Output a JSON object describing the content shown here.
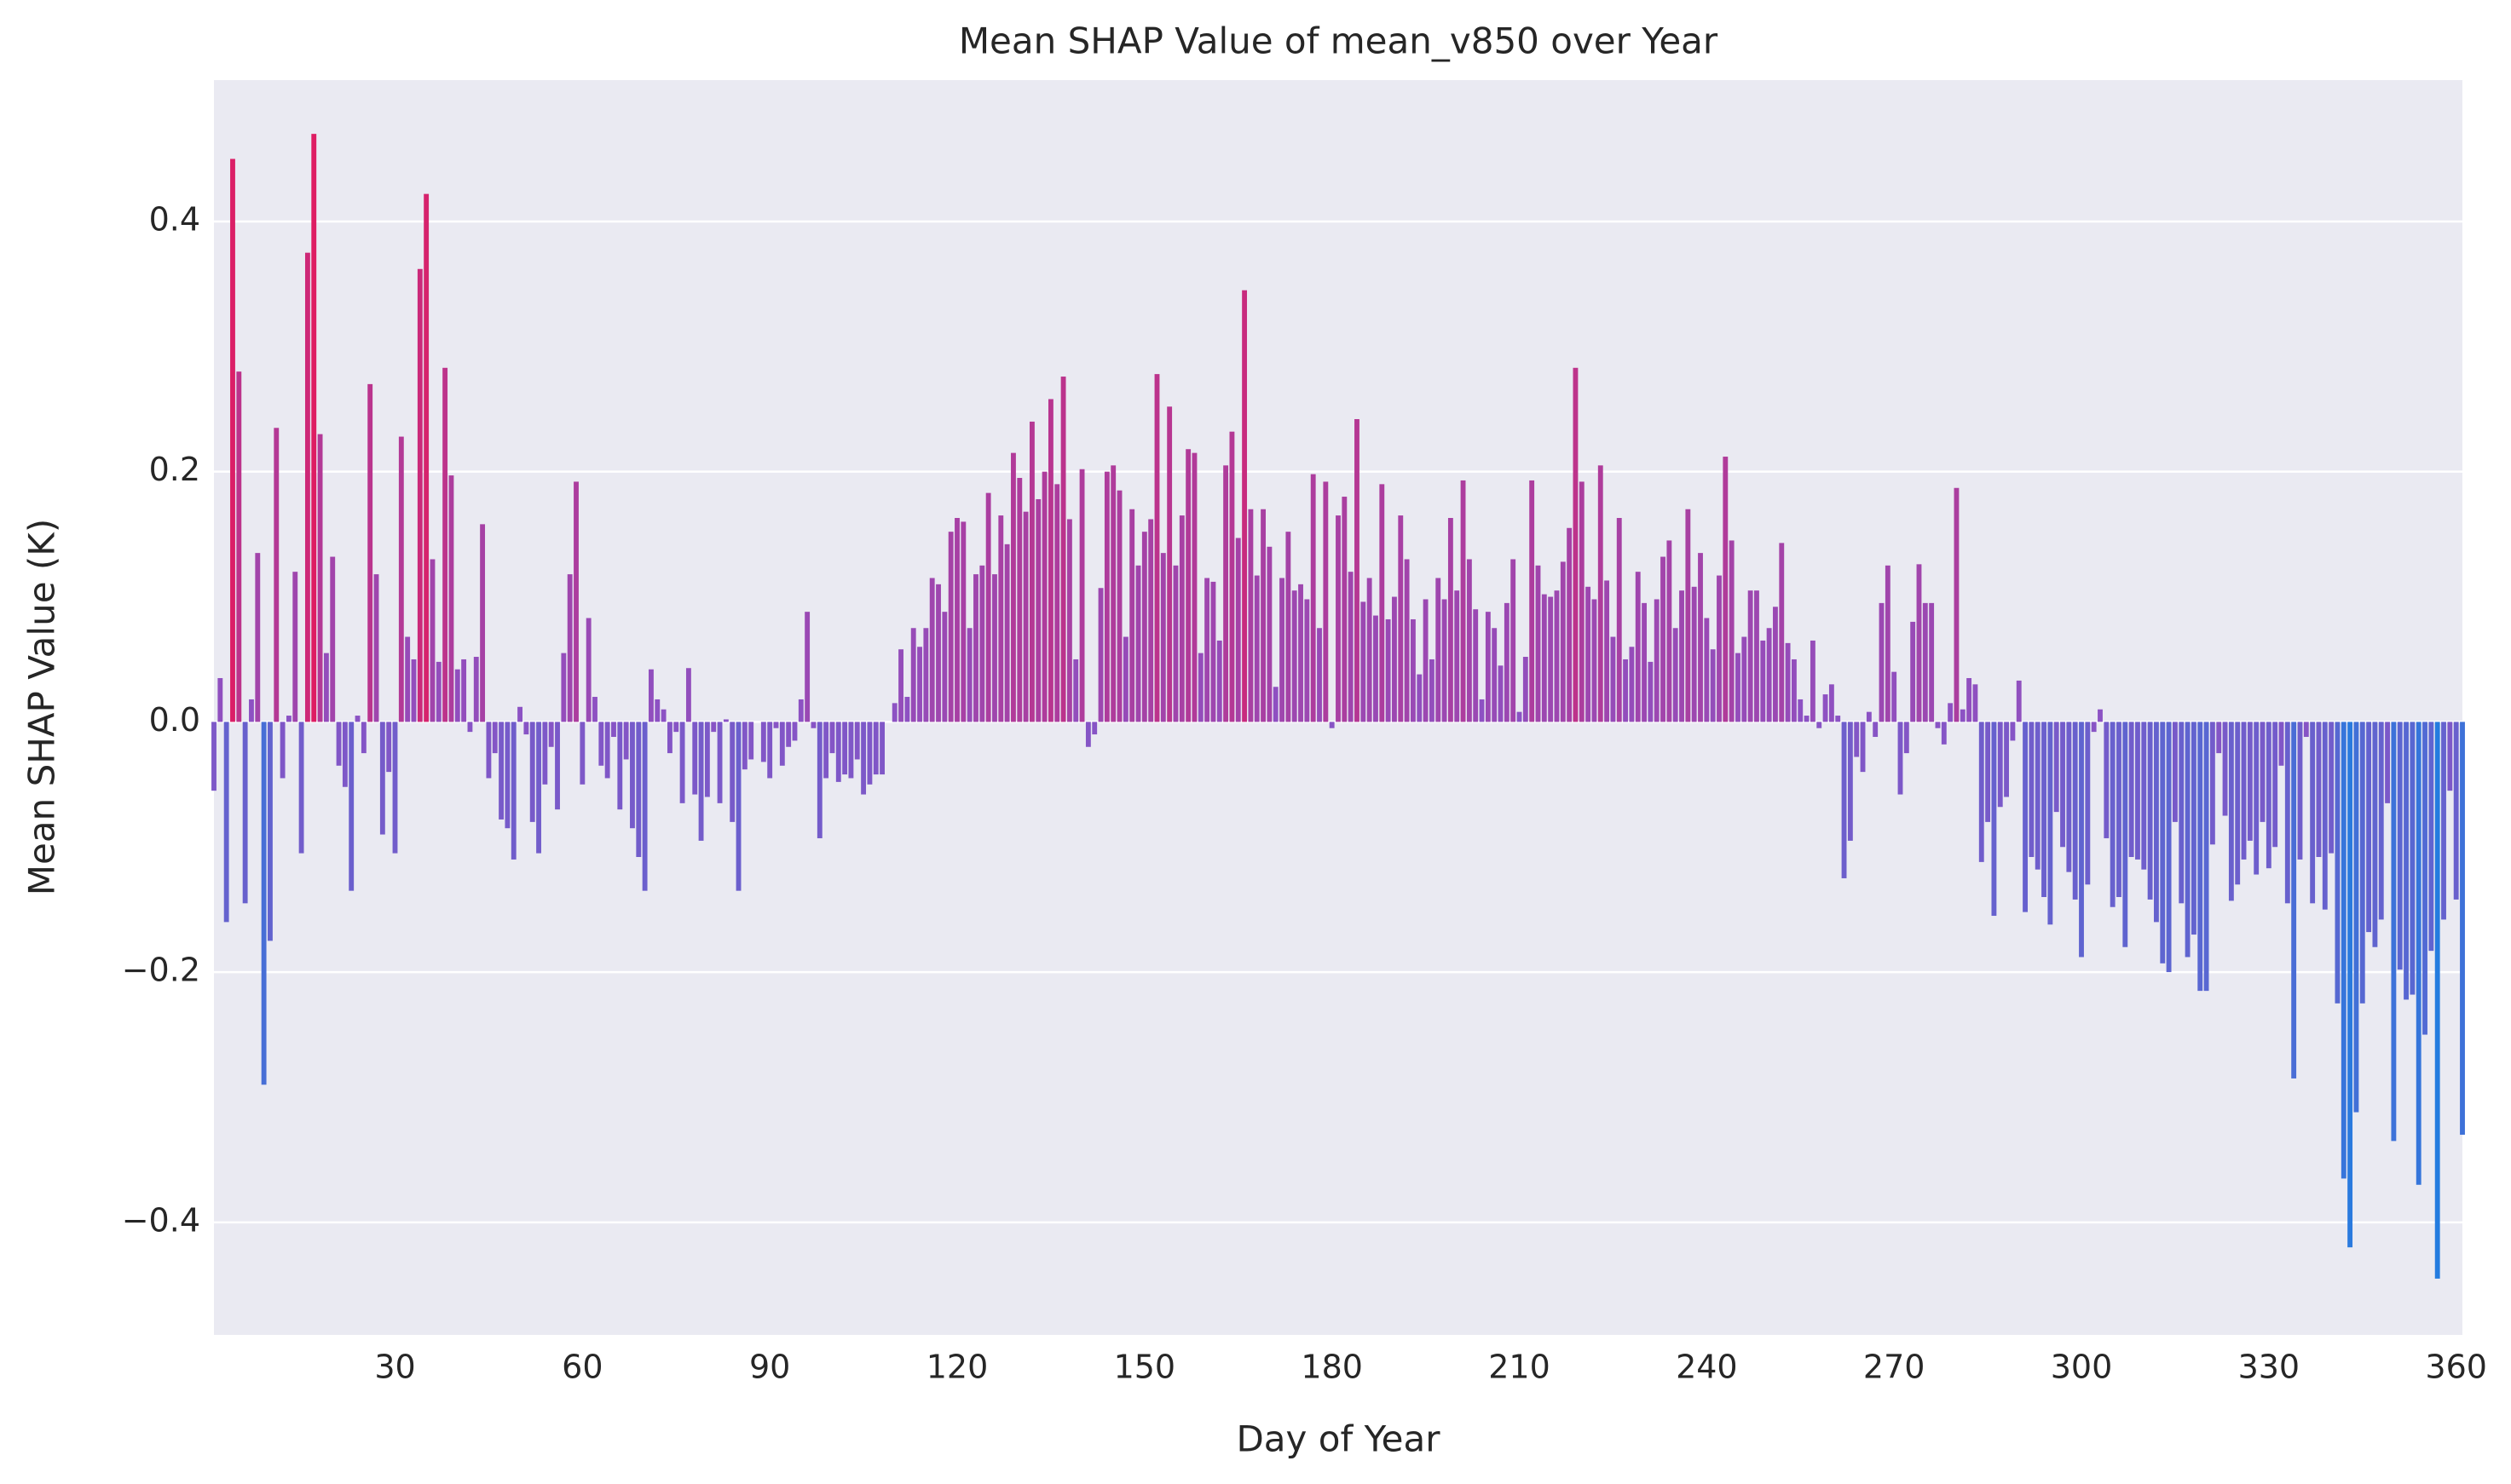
{
  "chart_data": {
    "type": "bar",
    "title": "Mean SHAP Value of mean_v850 over Year",
    "xlabel": "Day of Year",
    "ylabel": "Mean SHAP Value (K)",
    "x": [
      1,
      2,
      3,
      4,
      5,
      6,
      7,
      8,
      9,
      10,
      11,
      12,
      13,
      14,
      15,
      16,
      17,
      18,
      19,
      20,
      21,
      22,
      23,
      24,
      25,
      26,
      27,
      28,
      29,
      30,
      31,
      32,
      33,
      34,
      35,
      36,
      37,
      38,
      39,
      40,
      41,
      42,
      43,
      44,
      45,
      46,
      47,
      48,
      49,
      50,
      51,
      52,
      53,
      54,
      55,
      56,
      57,
      58,
      59,
      60,
      61,
      62,
      63,
      64,
      65,
      66,
      67,
      68,
      69,
      70,
      71,
      72,
      73,
      74,
      75,
      76,
      77,
      78,
      79,
      80,
      81,
      82,
      83,
      84,
      85,
      86,
      87,
      88,
      89,
      90,
      91,
      92,
      93,
      94,
      95,
      96,
      97,
      98,
      99,
      100,
      101,
      102,
      103,
      104,
      105,
      106,
      107,
      108,
      109,
      110,
      111,
      112,
      113,
      114,
      115,
      116,
      117,
      118,
      119,
      120,
      121,
      122,
      123,
      124,
      125,
      126,
      127,
      128,
      129,
      130,
      131,
      132,
      133,
      134,
      135,
      136,
      137,
      138,
      139,
      140,
      141,
      142,
      143,
      144,
      145,
      146,
      147,
      148,
      149,
      150,
      151,
      152,
      153,
      154,
      155,
      156,
      157,
      158,
      159,
      160,
      161,
      162,
      163,
      164,
      165,
      166,
      167,
      168,
      169,
      170,
      171,
      172,
      173,
      174,
      175,
      176,
      177,
      178,
      179,
      180,
      181,
      182,
      183,
      184,
      185,
      186,
      187,
      188,
      189,
      190,
      191,
      192,
      193,
      194,
      195,
      196,
      197,
      198,
      199,
      200,
      201,
      202,
      203,
      204,
      205,
      206,
      207,
      208,
      209,
      210,
      211,
      212,
      213,
      214,
      215,
      216,
      217,
      218,
      219,
      220,
      221,
      222,
      223,
      224,
      225,
      226,
      227,
      228,
      229,
      230,
      231,
      232,
      233,
      234,
      235,
      236,
      237,
      238,
      239,
      240,
      241,
      242,
      243,
      244,
      245,
      246,
      247,
      248,
      249,
      250,
      251,
      252,
      253,
      254,
      255,
      256,
      257,
      258,
      259,
      260,
      261,
      262,
      263,
      264,
      265,
      266,
      267,
      268,
      269,
      270,
      271,
      272,
      273,
      274,
      275,
      276,
      277,
      278,
      279,
      280,
      281,
      282,
      283,
      284,
      285,
      286,
      287,
      288,
      289,
      290,
      291,
      292,
      293,
      294,
      295,
      296,
      297,
      298,
      299,
      300,
      301,
      302,
      303,
      304,
      305,
      306,
      307,
      308,
      309,
      310,
      311,
      312,
      313,
      314,
      315,
      316,
      317,
      318,
      319,
      320,
      321,
      322,
      323,
      324,
      325,
      326,
      327,
      328,
      329,
      330,
      331,
      332,
      333,
      334,
      335,
      336,
      337,
      338,
      339,
      340,
      341,
      342,
      343,
      344,
      345,
      346,
      347,
      348,
      349,
      350,
      351,
      352,
      353,
      354,
      355,
      356,
      357,
      358,
      359,
      360,
      361
    ],
    "values": [
      -0.055,
      0.035,
      -0.16,
      0.45,
      0.28,
      -0.145,
      0.018,
      0.135,
      -0.29,
      -0.175,
      0.235,
      -0.045,
      0.005,
      0.12,
      -0.105,
      0.375,
      0.47,
      0.23,
      0.055,
      0.132,
      -0.035,
      -0.052,
      -0.135,
      0.005,
      -0.025,
      0.27,
      0.118,
      -0.09,
      -0.04,
      -0.105,
      0.228,
      0.068,
      0.05,
      0.362,
      0.422,
      0.13,
      0.048,
      0.283,
      0.197,
      0.042,
      0.05,
      -0.008,
      0.052,
      0.158,
      -0.045,
      -0.025,
      -0.078,
      -0.085,
      -0.11,
      0.012,
      -0.01,
      -0.08,
      -0.105,
      -0.05,
      -0.02,
      -0.07,
      0.055,
      0.118,
      0.192,
      -0.05,
      0.083,
      0.02,
      -0.035,
      -0.045,
      -0.012,
      -0.07,
      -0.03,
      -0.085,
      -0.108,
      -0.135,
      0.042,
      0.018,
      0.01,
      -0.025,
      -0.008,
      -0.065,
      0.043,
      -0.058,
      -0.095,
      -0.06,
      -0.008,
      -0.065,
      0.002,
      -0.08,
      -0.135,
      -0.038,
      -0.03,
      0,
      -0.032,
      -0.045,
      -0.005,
      -0.035,
      -0.02,
      -0.015,
      0.018,
      0.088,
      -0.005,
      -0.093,
      -0.045,
      -0.025,
      -0.048,
      -0.042,
      -0.045,
      -0.03,
      -0.058,
      -0.05,
      -0.042,
      -0.042,
      0,
      0.015,
      0.058,
      0.02,
      0.075,
      0.06,
      0.075,
      0.115,
      0.11,
      0.088,
      0.152,
      0.163,
      0.16,
      0.075,
      0.118,
      0.125,
      0.183,
      0.118,
      0.165,
      0.142,
      0.215,
      0.195,
      0.168,
      0.24,
      0.178,
      0.2,
      0.258,
      0.19,
      0.276,
      0.162,
      0.05,
      0.202,
      -0.02,
      -0.01,
      0.107,
      0.2,
      0.205,
      0.185,
      0.068,
      0.17,
      0.125,
      0.152,
      0.162,
      0.278,
      0.135,
      0.252,
      0.125,
      0.165,
      0.218,
      0.215,
      0.055,
      0.115,
      0.112,
      0.065,
      0.205,
      0.232,
      0.147,
      0.345,
      0.17,
      0.117,
      0.17,
      0.14,
      0.028,
      0.115,
      0.152,
      0.105,
      0.11,
      0.098,
      0.198,
      0.075,
      0.192,
      -0.005,
      0.165,
      0.18,
      0.12,
      0.242,
      0.096,
      0.115,
      0.085,
      0.19,
      0.082,
      0.1,
      0.165,
      0.13,
      0.082,
      0.038,
      0.098,
      0.05,
      0.115,
      0.098,
      0.163,
      0.105,
      0.193,
      0.13,
      0.09,
      0.018,
      0.088,
      0.075,
      0.045,
      0.095,
      0.13,
      0.008,
      0.052,
      0.193,
      0.125,
      0.102,
      0.1,
      0.105,
      0.128,
      0.155,
      0.283,
      0.192,
      0.108,
      0.098,
      0.205,
      0.113,
      0.068,
      0.163,
      0.05,
      0.06,
      0.12,
      0.095,
      0.048,
      0.098,
      0.132,
      0.145,
      0.075,
      0.105,
      0.17,
      0.108,
      0.135,
      0.083,
      0.058,
      0.117,
      0.212,
      0.145,
      0.055,
      0.068,
      0.105,
      0.105,
      0.065,
      0.075,
      0.092,
      0.143,
      0.063,
      0.05,
      0.018,
      0.005,
      0.065,
      -0.005,
      0.022,
      0.03,
      0.005,
      -0.125,
      -0.095,
      -0.028,
      -0.04,
      0.008,
      -0.012,
      0.095,
      0.125,
      0.04,
      -0.058,
      -0.025,
      0.08,
      0.126,
      0.095,
      0.095,
      -0.005,
      -0.018,
      0.015,
      0.187,
      0.01,
      0.035,
      0.03,
      -0.112,
      -0.08,
      -0.155,
      -0.068,
      -0.06,
      -0.015,
      0.033,
      -0.152,
      -0.108,
      -0.118,
      -0.14,
      -0.162,
      -0.072,
      -0.1,
      -0.12,
      -0.142,
      -0.188,
      -0.13,
      -0.008,
      0.01,
      -0.093,
      -0.148,
      -0.14,
      -0.18,
      -0.108,
      -0.11,
      -0.118,
      -0.142,
      -0.16,
      -0.193,
      -0.2,
      -0.08,
      -0.145,
      -0.188,
      -0.17,
      -0.215,
      -0.215,
      -0.098,
      -0.025,
      -0.075,
      -0.143,
      -0.13,
      -0.11,
      -0.095,
      -0.122,
      -0.08,
      -0.117,
      -0.1,
      -0.035,
      -0.145,
      -0.285,
      -0.11,
      -0.012,
      -0.145,
      -0.108,
      -0.15,
      -0.105,
      -0.225,
      -0.365,
      -0.42,
      -0.312,
      -0.225,
      -0.168,
      -0.18,
      -0.158,
      -0.065,
      -0.335,
      -0.198,
      -0.222,
      -0.218,
      -0.37,
      -0.25,
      -0.183,
      -0.445,
      -0.158,
      -0.055,
      -0.142,
      -0.33
    ],
    "colormap": [
      "#1a80e2",
      "#8c52c4",
      "#e6185a"
    ],
    "xlim": [
      1,
      361
    ],
    "xticks": [
      30,
      60,
      90,
      120,
      150,
      180,
      210,
      240,
      270,
      300,
      330,
      360
    ],
    "ylim": [
      -0.49,
      0.513
    ],
    "yticks": [
      {
        "value": -0.4,
        "label": "−0.4"
      },
      {
        "value": -0.2,
        "label": "−0.2"
      },
      {
        "value": 0,
        "label": "0.0"
      },
      0.2,
      0.4
    ],
    "grid": true
  }
}
